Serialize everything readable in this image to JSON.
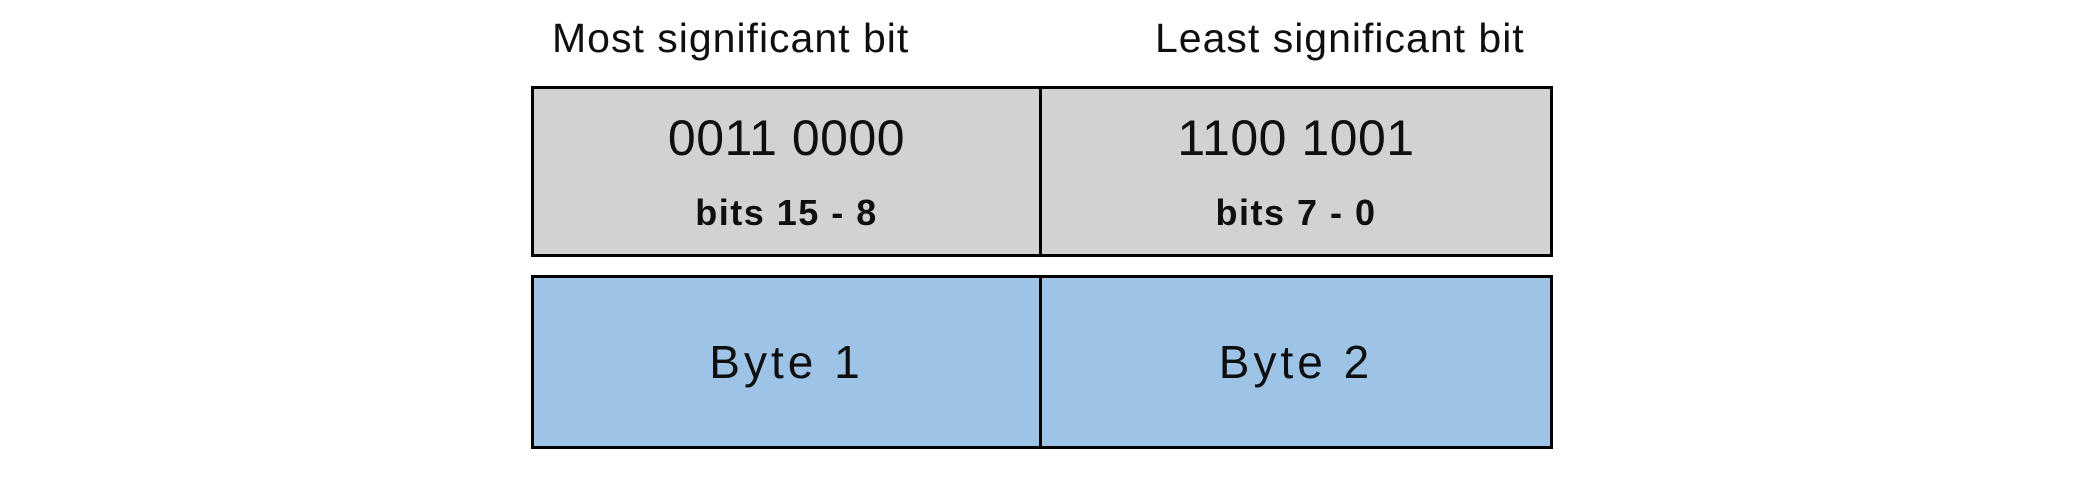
{
  "diagram": {
    "description": "16-bit word split into two bytes",
    "background": "#ffffff",
    "colors": {
      "bit_row_fill": "#d2d2d2",
      "byte_row_fill": "#9dc3e6",
      "border": "#000000",
      "text": "#0f0f0f"
    },
    "labels": {
      "msb": "Most significant bit",
      "lsb": "Least significant bit"
    },
    "word": {
      "cells": [
        {
          "binary": "0011 0000",
          "bits_label": "bits 15 - 8",
          "byte_label": "Byte 1"
        },
        {
          "binary": "1100 1001",
          "bits_label": "bits 7 - 0",
          "byte_label": "Byte 2"
        }
      ]
    }
  }
}
